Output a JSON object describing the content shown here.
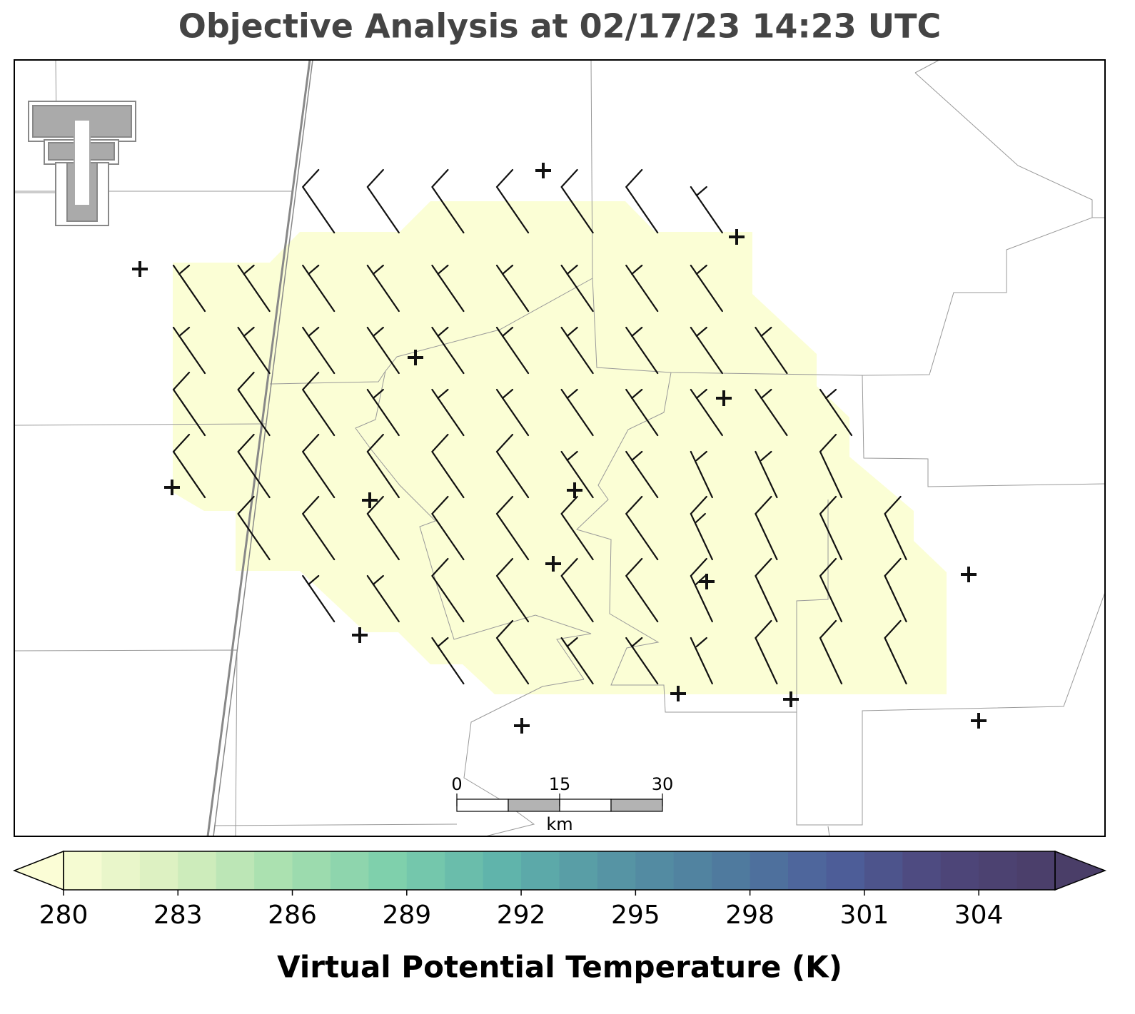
{
  "title": "Objective Analysis at 02/17/23 14:23 UTC",
  "scale_bar": {
    "ticks": [
      0,
      15,
      30
    ],
    "unit": "km"
  },
  "colorbar": {
    "label": "Virtual Potential Temperature (K)",
    "range": [
      280,
      306
    ],
    "ticks": [
      280,
      283,
      286,
      289,
      292,
      295,
      298,
      301,
      304
    ],
    "colors": [
      "#fbfdd6",
      "#d8efbf",
      "#a6dfae",
      "#7dcfac",
      "#5fb3ab",
      "#5694a4",
      "#4f7c9e",
      "#4d5f9b",
      "#4e467a",
      "#4a3e68"
    ]
  }
}
